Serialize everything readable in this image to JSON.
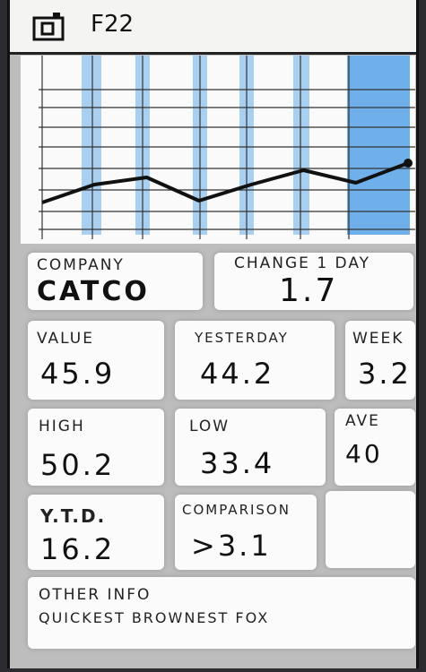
{
  "header": {
    "title": "F22"
  },
  "chart": {
    "type": "line",
    "values": [
      1.8,
      2.8,
      3.2,
      1.9,
      2.8,
      3.6,
      2.9,
      4.0
    ],
    "ylim": [
      0,
      10
    ],
    "color": "#111111"
  },
  "cells": {
    "company": {
      "label": "COMPANY",
      "value": "CATCO"
    },
    "change": {
      "label": "CHANGE 1 DAY",
      "value": "1.7"
    },
    "value": {
      "label": "VALUE",
      "value": "45.9"
    },
    "yesterday": {
      "label": "YESTERDAY",
      "value": "44.2"
    },
    "week": {
      "label": "WEEK",
      "value": "3.2"
    },
    "high": {
      "label": "HIGH",
      "value": "50.2"
    },
    "low": {
      "label": "LOW",
      "value": "33.4"
    },
    "ave": {
      "label": "AVE",
      "value": "40"
    },
    "ytd": {
      "label": "Y.T.D.",
      "value": "16.2"
    },
    "comparison": {
      "label": "COMPARISON",
      "value": ">3.1"
    },
    "other": {
      "label": "OTHER INFO",
      "value": "QUICKEST BROWNEST FOX"
    }
  }
}
